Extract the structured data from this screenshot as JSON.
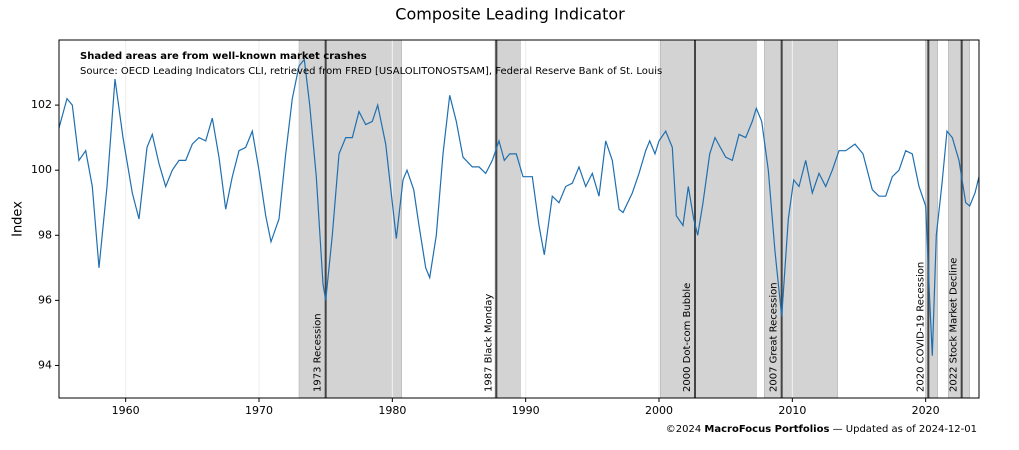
{
  "chart_data": {
    "type": "line",
    "title": "Composite Leading Indicator",
    "ylabel": "Index",
    "notes": [
      "Shaded areas are from well-known market crashes",
      "Source: OECD Leading Indicators CLI, retrieved from FRED [USALOLITONOSTSAM], Federal Reserve Bank of St. Louis"
    ],
    "footer": [
      "©2024 ",
      "MacroFocus Portfolios",
      " — Updated as of 2024-12-01"
    ],
    "xlim": [
      1955,
      2024
    ],
    "xticks": [
      1960,
      1970,
      1980,
      1990,
      2000,
      2010,
      2020
    ],
    "ylim": [
      93,
      104
    ],
    "yticks": [
      94,
      96,
      98,
      100,
      102
    ],
    "grid": true,
    "shade_color": "#d3d3d3",
    "event_color": "#444444",
    "shaded_regions": [
      {
        "label": "1973 Recession",
        "start": 1973.0,
        "end": 1980.7,
        "event": 1975.0
      },
      {
        "label": "1987 Black Monday",
        "start": 1987.7,
        "end": 1989.6,
        "event": 1987.8
      },
      {
        "label": "2000 Dot-com Bubble",
        "start": 2000.1,
        "end": 2007.3,
        "event": 2002.7
      },
      {
        "label": "2007 Great Recession",
        "start": 2007.9,
        "end": 2013.4,
        "event": 2009.2
      },
      {
        "label": "2020 COVID-19 Recession",
        "start": 2020.0,
        "end": 2020.9,
        "event": 2020.2
      },
      {
        "label": "2022 Stock Market Decline",
        "start": 2021.7,
        "end": 2023.3,
        "event": 2022.7
      }
    ],
    "series": [
      {
        "name": "CLI",
        "color": "#1f6fb0",
        "x": [
          1955.0,
          1955.6,
          1956.0,
          1956.5,
          1957.0,
          1957.5,
          1958.0,
          1958.6,
          1959.2,
          1959.8,
          1960.5,
          1961.0,
          1961.6,
          1962.0,
          1962.5,
          1963.0,
          1963.5,
          1964.0,
          1964.5,
          1965.0,
          1965.5,
          1966.0,
          1966.5,
          1967.0,
          1967.5,
          1968.0,
          1968.5,
          1969.0,
          1969.5,
          1970.0,
          1970.5,
          1970.9,
          1971.5,
          1972.0,
          1972.5,
          1973.0,
          1973.4,
          1973.8,
          1974.3,
          1974.8,
          1975.0,
          1975.5,
          1976.0,
          1976.5,
          1977.0,
          1977.5,
          1978.0,
          1978.5,
          1978.9,
          1979.5,
          1980.0,
          1980.3,
          1980.8,
          1981.1,
          1981.6,
          1982.0,
          1982.5,
          1982.8,
          1983.3,
          1983.8,
          1984.3,
          1984.8,
          1985.3,
          1986.0,
          1986.5,
          1987.0,
          1987.5,
          1988.0,
          1988.4,
          1988.8,
          1989.3,
          1989.8,
          1990.5,
          1991.0,
          1991.4,
          1992.0,
          1992.5,
          1993.0,
          1993.5,
          1994.0,
          1994.5,
          1995.0,
          1995.5,
          1996.0,
          1996.5,
          1997.0,
          1997.3,
          1998.0,
          1998.5,
          1999.0,
          1999.3,
          1999.7,
          2000.0,
          2000.5,
          2001.0,
          2001.3,
          2001.8,
          2002.2,
          2002.6,
          2002.9,
          2003.3,
          2003.8,
          2004.2,
          2004.6,
          2005.0,
          2005.5,
          2006.0,
          2006.5,
          2007.0,
          2007.3,
          2007.7,
          2008.2,
          2008.7,
          2009.2,
          2009.7,
          2010.1,
          2010.5,
          2011.0,
          2011.5,
          2012.0,
          2012.5,
          2013.0,
          2013.5,
          2014.0,
          2014.7,
          2015.3,
          2016.0,
          2016.5,
          2017.0,
          2017.5,
          2018.0,
          2018.5,
          2019.0,
          2019.5,
          2020.0,
          2020.3,
          2020.5,
          2020.8,
          2021.2,
          2021.6,
          2022.0,
          2022.5,
          2023.0,
          2023.3,
          2023.7,
          2024.0
        ],
        "values": [
          101.3,
          102.2,
          102.0,
          100.3,
          100.6,
          99.5,
          97.0,
          99.5,
          102.8,
          101.0,
          99.3,
          98.5,
          100.7,
          101.1,
          100.2,
          99.5,
          100.0,
          100.3,
          100.3,
          100.8,
          101.0,
          100.9,
          101.6,
          100.4,
          98.8,
          99.8,
          100.6,
          100.7,
          101.2,
          100.0,
          98.6,
          97.8,
          98.5,
          100.5,
          102.2,
          103.2,
          103.4,
          102.0,
          99.8,
          96.5,
          96.0,
          98.0,
          100.5,
          101.0,
          101.0,
          101.8,
          101.4,
          101.5,
          102.0,
          100.8,
          99.0,
          97.9,
          99.7,
          100.0,
          99.4,
          98.3,
          97.0,
          96.7,
          98.0,
          100.5,
          102.3,
          101.5,
          100.4,
          100.1,
          100.1,
          99.9,
          100.3,
          100.9,
          100.3,
          100.5,
          100.5,
          99.8,
          99.8,
          98.3,
          97.4,
          99.2,
          99.0,
          99.5,
          99.6,
          100.1,
          99.5,
          99.9,
          99.2,
          100.9,
          100.3,
          98.8,
          98.7,
          99.3,
          99.9,
          100.6,
          100.9,
          100.5,
          100.9,
          101.2,
          100.7,
          98.6,
          98.3,
          99.5,
          98.5,
          98.0,
          99.0,
          100.5,
          101.0,
          100.7,
          100.4,
          100.3,
          101.1,
          101.0,
          101.5,
          101.9,
          101.5,
          100.0,
          97.5,
          95.5,
          98.5,
          99.7,
          99.5,
          100.3,
          99.3,
          99.9,
          99.5,
          100.0,
          100.6,
          100.6,
          100.8,
          100.5,
          99.4,
          99.2,
          99.2,
          99.8,
          100.0,
          100.6,
          100.5,
          99.5,
          98.9,
          96.0,
          94.3,
          98.0,
          99.5,
          101.2,
          101.0,
          100.3,
          99.0,
          98.9,
          99.3,
          99.8
        ]
      }
    ]
  }
}
